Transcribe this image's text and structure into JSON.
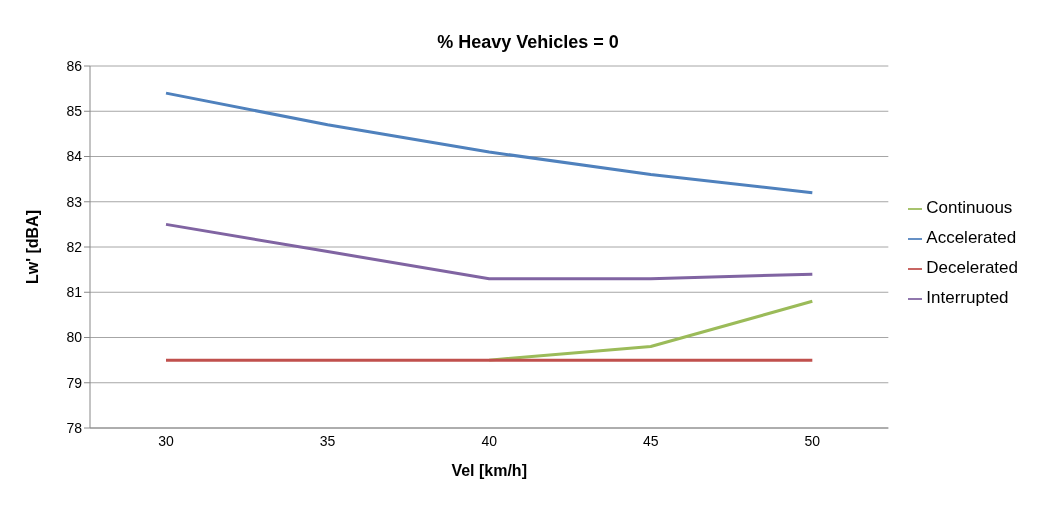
{
  "chart_data": {
    "type": "line",
    "title": "% Heavy Vehicles = 0",
    "xlabel": "Vel [km/h]",
    "ylabel": "Lw' [dBA]",
    "categories": [
      "30",
      "35",
      "40",
      "45",
      "50"
    ],
    "series": [
      {
        "name": "Continuous",
        "color": "#9bbb59",
        "values": [
          null,
          null,
          79.5,
          79.8,
          80.8
        ]
      },
      {
        "name": "Accelerated",
        "color": "#4f81bd",
        "values": [
          85.4,
          84.7,
          84.1,
          83.6,
          83.2
        ]
      },
      {
        "name": "Decelerated",
        "color": "#c0504d",
        "values": [
          79.5,
          79.5,
          79.5,
          79.5,
          79.5
        ]
      },
      {
        "name": "Interrupted",
        "color": "#8064a2",
        "values": [
          82.5,
          81.9,
          81.3,
          81.3,
          81.4
        ]
      }
    ],
    "ylim": [
      78,
      86
    ],
    "yticks": [
      78,
      79,
      80,
      81,
      82,
      83,
      84,
      85,
      86
    ],
    "grid": "y",
    "legend": "right",
    "marker": "none",
    "line_style": "solid"
  }
}
